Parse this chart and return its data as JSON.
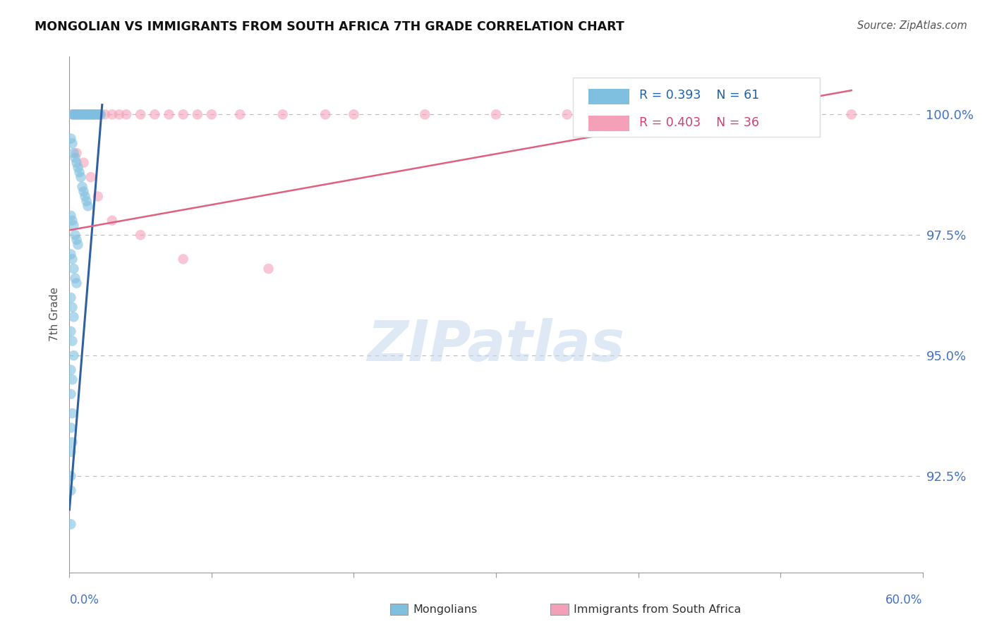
{
  "title": "MONGOLIAN VS IMMIGRANTS FROM SOUTH AFRICA 7TH GRADE CORRELATION CHART",
  "source": "Source: ZipAtlas.com",
  "ylabel": "7th Grade",
  "y_ticks": [
    92.5,
    95.0,
    97.5,
    100.0
  ],
  "y_tick_labels": [
    "92.5%",
    "95.0%",
    "97.5%",
    "100.0%"
  ],
  "x_range": [
    0.0,
    60.0
  ],
  "y_range": [
    90.5,
    101.2
  ],
  "legend_blue_r": "R = 0.393",
  "legend_blue_n": "N = 61",
  "legend_pink_r": "R = 0.403",
  "legend_pink_n": "N = 36",
  "blue_color": "#7fbfdf",
  "pink_color": "#f4a0b8",
  "blue_line_color": "#3060a0",
  "pink_line_color": "#e06080",
  "mongolians_x": [
    0.2,
    0.3,
    0.4,
    0.5,
    0.6,
    0.7,
    0.8,
    0.9,
    1.0,
    1.1,
    1.2,
    1.3,
    1.4,
    1.5,
    1.6,
    1.7,
    1.8,
    1.9,
    2.0,
    2.1,
    2.2,
    0.1,
    0.2,
    0.3,
    0.4,
    0.5,
    0.6,
    0.7,
    0.8,
    0.9,
    1.0,
    1.1,
    1.2,
    1.3,
    0.1,
    0.2,
    0.3,
    0.4,
    0.5,
    0.6,
    0.1,
    0.2,
    0.3,
    0.4,
    0.5,
    0.1,
    0.2,
    0.3,
    0.1,
    0.2,
    0.3,
    0.1,
    0.2,
    0.1,
    0.2,
    0.1,
    0.2,
    0.1,
    0.1,
    0.1,
    0.1
  ],
  "mongolians_y": [
    100.0,
    100.0,
    100.0,
    100.0,
    100.0,
    100.0,
    100.0,
    100.0,
    100.0,
    100.0,
    100.0,
    100.0,
    100.0,
    100.0,
    100.0,
    100.0,
    100.0,
    100.0,
    100.0,
    100.0,
    100.0,
    99.5,
    99.4,
    99.2,
    99.1,
    99.0,
    98.9,
    98.8,
    98.7,
    98.5,
    98.4,
    98.3,
    98.2,
    98.1,
    97.9,
    97.8,
    97.7,
    97.5,
    97.4,
    97.3,
    97.1,
    97.0,
    96.8,
    96.6,
    96.5,
    96.2,
    96.0,
    95.8,
    95.5,
    95.3,
    95.0,
    94.7,
    94.5,
    94.2,
    93.8,
    93.5,
    93.2,
    93.0,
    92.5,
    92.2,
    91.5
  ],
  "immigrants_x": [
    0.2,
    0.4,
    0.6,
    0.8,
    1.0,
    1.2,
    1.4,
    1.6,
    1.8,
    2.0,
    2.5,
    3.0,
    3.5,
    4.0,
    5.0,
    6.0,
    7.0,
    8.0,
    9.0,
    10.0,
    12.0,
    15.0,
    18.0,
    20.0,
    25.0,
    30.0,
    35.0,
    55.0,
    0.5,
    1.0,
    1.5,
    2.0,
    3.0,
    5.0,
    8.0,
    14.0
  ],
  "immigrants_y": [
    100.0,
    100.0,
    100.0,
    100.0,
    100.0,
    100.0,
    100.0,
    100.0,
    100.0,
    100.0,
    100.0,
    100.0,
    100.0,
    100.0,
    100.0,
    100.0,
    100.0,
    100.0,
    100.0,
    100.0,
    100.0,
    100.0,
    100.0,
    100.0,
    100.0,
    100.0,
    100.0,
    100.0,
    99.2,
    99.0,
    98.7,
    98.3,
    97.8,
    97.5,
    97.0,
    96.8
  ],
  "blue_trendline_x": [
    0.0,
    2.3
  ],
  "blue_trendline_y": [
    91.8,
    100.2
  ],
  "pink_trendline_x": [
    0.0,
    55.0
  ],
  "pink_trendline_y": [
    97.6,
    100.5
  ],
  "x_tick_positions": [
    0,
    10,
    20,
    30,
    40,
    50,
    60
  ],
  "watermark_text": "ZIPatlas"
}
